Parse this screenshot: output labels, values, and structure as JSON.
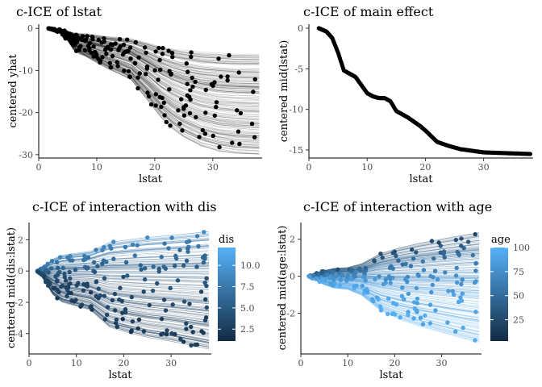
{
  "chart_data": [
    {
      "type": "line",
      "title": "c-ICE of lstat",
      "xlabel": "lstat",
      "ylabel": "centered yhat",
      "xlim": [
        0,
        38.5
      ],
      "ylim": [
        -30.8,
        1
      ],
      "xticks": [
        0,
        10,
        20,
        30
      ],
      "yticks": [
        0,
        -10,
        -20,
        -30
      ],
      "line_color": "#000000",
      "point_color": "#000000",
      "n_lines": 220,
      "lstat_grid": [
        1.7,
        3,
        4,
        5,
        6,
        7,
        8,
        10,
        12,
        14,
        16,
        17,
        19,
        21,
        23,
        25,
        28,
        31,
        34,
        38
      ],
      "curve_template": [
        0,
        -0.02,
        -0.05,
        -0.1,
        -0.17,
        -0.2,
        -0.22,
        -0.27,
        -0.32,
        -0.36,
        -0.41,
        -0.47,
        -0.58,
        -0.7,
        -0.79,
        -0.86,
        -0.93,
        -0.97,
        -0.99,
        -1
      ],
      "spread_range": [
        6,
        30
      ],
      "observed_range": [
        0,
        -29
      ],
      "grid": false
    },
    {
      "type": "line",
      "title": "c-ICE of main effect",
      "xlabel": "lstat",
      "ylabel": "centered mid(lstat)",
      "xlim": [
        0,
        38.5
      ],
      "ylim": [
        -16,
        0.5
      ],
      "xticks": [
        0,
        10,
        20,
        30
      ],
      "yticks": [
        0,
        -5,
        -10,
        -15
      ],
      "line_color": "#000000",
      "series": [
        {
          "x": [
            1.7,
            3,
            4,
            5,
            6,
            7,
            8,
            9,
            10,
            11,
            12,
            13,
            14,
            15,
            16,
            17,
            18,
            19,
            20,
            21,
            22,
            24,
            26,
            28,
            30,
            34,
            38
          ],
          "values": [
            0,
            -0.4,
            -1.2,
            -3,
            -5.2,
            -5.6,
            -6,
            -7,
            -8,
            -8.4,
            -8.6,
            -8.6,
            -9,
            -10.2,
            -10.6,
            -11,
            -11.5,
            -12,
            -12.6,
            -13.3,
            -14,
            -14.5,
            -14.9,
            -15.1,
            -15.3,
            -15.4,
            -15.5
          ]
        }
      ],
      "grid": false
    },
    {
      "type": "line",
      "title": "c-ICE of interaction with dis",
      "xlabel": "lstat",
      "ylabel": "centered mid(dis:lstat)",
      "xlim": [
        0,
        38.5
      ],
      "ylim": [
        -5.3,
        3.1
      ],
      "xticks": [
        0,
        10,
        20,
        30
      ],
      "yticks": [
        2,
        0,
        -2,
        -4
      ],
      "legend": {
        "title": "dis",
        "range": [
          1.1,
          12.1
        ],
        "ticks": [
          2.5,
          5.0,
          7.5,
          10.0
        ],
        "tick_labels": [
          "2.5",
          "5.0",
          "7.5",
          "10.0"
        ],
        "low_color": "#132b43",
        "high_color": "#56b1f7",
        "placement": "right"
      },
      "n_lines": 220,
      "lstat_grid": [
        1.7,
        3,
        5,
        7,
        10,
        13,
        17,
        21,
        25,
        30,
        34,
        38
      ],
      "slope_template": [
        0,
        0.1,
        0.3,
        0.4,
        0.45,
        0.5,
        0.72,
        0.79,
        0.85,
        0.9,
        0.95,
        1
      ],
      "amplitude_range": [
        -5,
        2.6
      ],
      "grid": false
    },
    {
      "type": "line",
      "title": "c-ICE of interaction with age",
      "xlabel": "lstat",
      "ylabel": "centered mid(age:lstat)",
      "xlim": [
        0,
        38.5
      ],
      "ylim": [
        -4.2,
        2.9
      ],
      "xticks": [
        0,
        10,
        20,
        30
      ],
      "yticks": [
        2,
        0,
        -2
      ],
      "legend": {
        "title": "age",
        "range": [
          2.9,
          100
        ],
        "ticks": [
          25,
          50,
          75,
          100
        ],
        "tick_labels": [
          "25",
          "50",
          "75",
          "100"
        ],
        "low_color": "#132b43",
        "high_color": "#56b1f7",
        "placement": "right"
      },
      "n_lines": 220,
      "lstat_grid": [
        1.7,
        3,
        5,
        7,
        10,
        13,
        17,
        21,
        25,
        30,
        34,
        38
      ],
      "slope_template": [
        0,
        0.06,
        0.13,
        0.18,
        0.2,
        0.29,
        0.52,
        0.65,
        0.75,
        0.85,
        0.93,
        1
      ],
      "amplitude_range": [
        -3.6,
        2.4
      ],
      "grid": false
    }
  ]
}
